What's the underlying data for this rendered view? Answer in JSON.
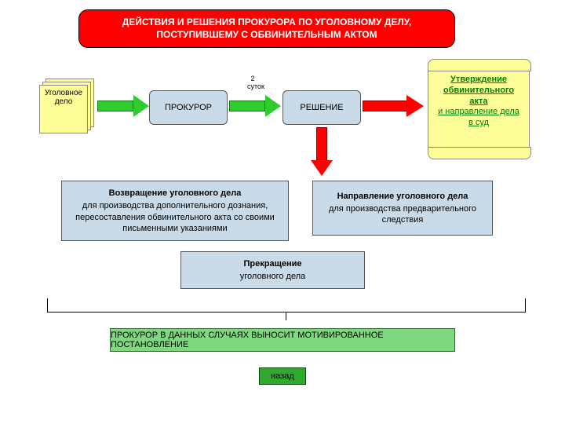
{
  "title": "ДЕЙСТВИЯ И РЕШЕНИЯ ПРОКУРОРА ПО УГОЛОВНОМУ ДЕЛУ, ПОСТУПИВШЕМУ С ОБВИНИТЕЛЬНЫМ АКТОМ",
  "doc_label": "Уголовное дело",
  "prosecutor": "ПРОКУРОР",
  "duration": "2 суток",
  "decision": "РЕШЕНИЕ",
  "scroll": {
    "l1": "Утверждение обвинительного акта",
    "l2": "и направление дела в суд"
  },
  "outcome_left": {
    "h": "Возвращение уголовного дела",
    "t": "для производства дополнительного дознания, пересоставления обвинительного акта со своими письменными указаниями"
  },
  "outcome_right": {
    "h": "Направление уголовного дела",
    "t": "для производства предварительного следствия"
  },
  "outcome_center": {
    "h": "Прекращение",
    "t": "уголовного дела"
  },
  "footer": "ПРОКУРОР В ДАННЫХ СЛУЧАЯХ ВЫНОСИТ МОТИВИРОВАННОЕ ПОСТАНОВЛЕНИЕ",
  "back": "назад",
  "colors": {
    "title_bg": "#ff0000",
    "doc_bg": "#ffff99",
    "box_bg": "#c9dbe8",
    "green_arrow": "#2ecc2e",
    "red_arrow": "#ff0000",
    "footer_bg": "#7fd87f",
    "back_bg": "#2faa2f"
  }
}
